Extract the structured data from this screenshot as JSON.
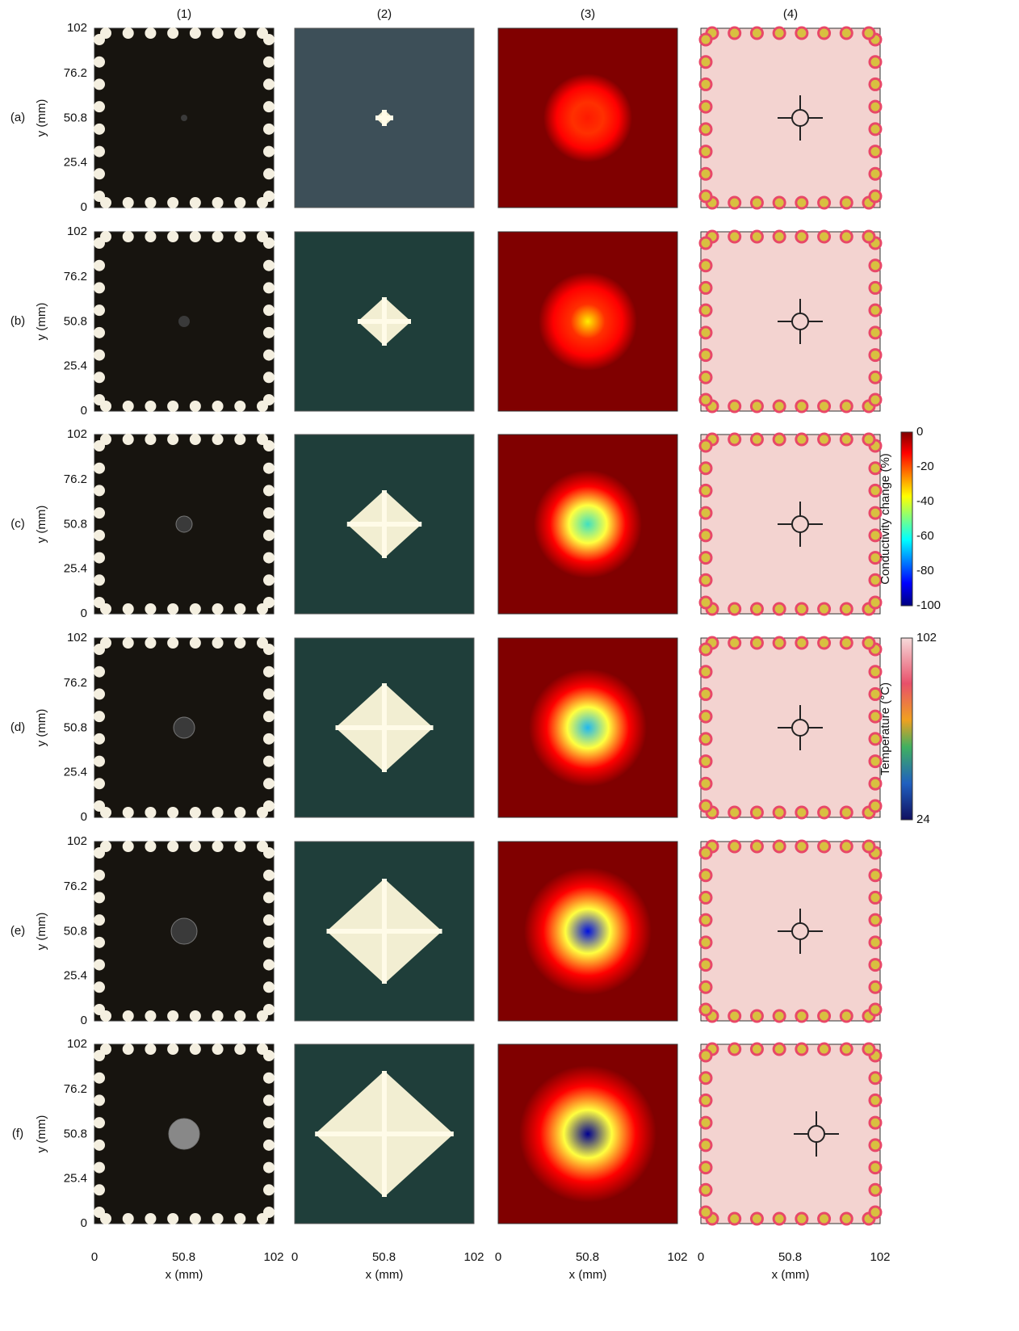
{
  "columns": [
    "(1)",
    "(2)",
    "(3)",
    "(4)"
  ],
  "rows": [
    "(a)",
    "(b)",
    "(c)",
    "(d)",
    "(e)",
    "(f)"
  ],
  "axes": {
    "x_label": "x (mm)",
    "y_label": "y (mm)",
    "x_ticks": [
      0,
      50.8,
      102
    ],
    "y_ticks": [
      0,
      25.4,
      50.8,
      76.2,
      102
    ]
  },
  "colorbars": [
    {
      "label": "Conductivity change (%)",
      "ticks": [
        0,
        -20,
        -40,
        -60,
        -80,
        -100
      ]
    },
    {
      "label": "Temperature (°C)",
      "ticks": [
        102,
        24
      ]
    }
  ]
}
